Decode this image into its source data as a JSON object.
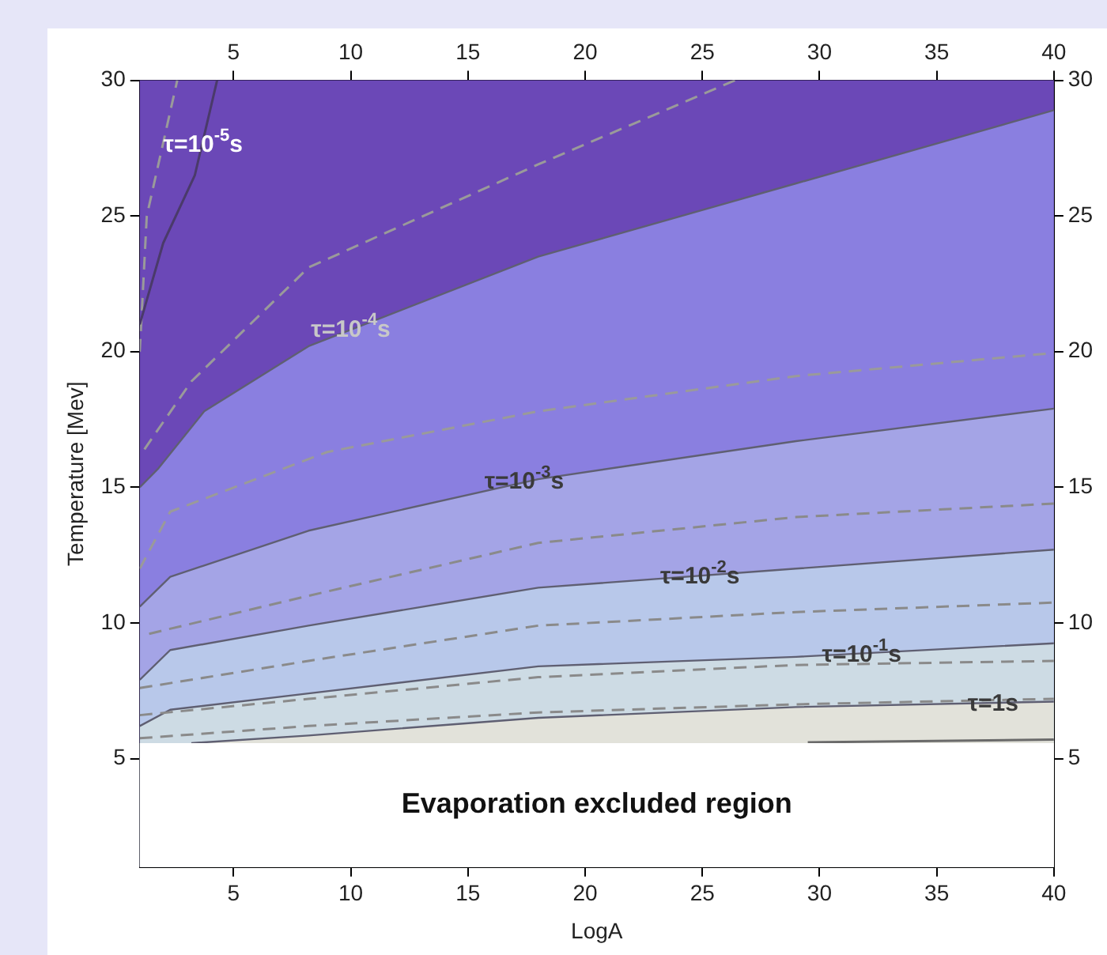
{
  "chart_data": {
    "type": "area",
    "xlabel": "LogA",
    "ylabel": "Temperature [Mev]",
    "xlim": [
      1,
      40
    ],
    "xticks": [
      5,
      10,
      15,
      20,
      25,
      30,
      35,
      40
    ],
    "x2lim": [
      1,
      40
    ],
    "x2ticks": [
      5,
      10,
      15,
      20,
      25,
      30,
      35,
      40
    ],
    "ylim": [
      1,
      30
    ],
    "yticks": [
      5,
      10,
      15,
      20,
      25,
      30
    ],
    "y2lim": [
      1,
      30
    ],
    "y2ticks": [
      5,
      10,
      15,
      20,
      25,
      30
    ],
    "grid": false,
    "legend": false,
    "marker": "none",
    "series": [
      {
        "color": "#8a7fe0",
        "x": [
          1,
          1.8,
          3.75,
          8.2,
          18,
          29,
          40
        ],
        "values": [
          15.0,
          15.7,
          17.8,
          20.2,
          23.5,
          26.2,
          28.9
        ]
      },
      {
        "color": "#a4a4e6",
        "x": [
          1,
          2.3,
          8.2,
          18,
          29,
          40
        ],
        "values": [
          10.6,
          11.7,
          13.4,
          15.3,
          16.7,
          17.9
        ]
      },
      {
        "color": "#b8c8ea",
        "x": [
          1,
          2.3,
          8.2,
          18,
          29,
          40
        ],
        "values": [
          7.9,
          9.0,
          9.9,
          11.3,
          12.0,
          12.7
        ]
      },
      {
        "color": "#cddbe4",
        "x": [
          1,
          2.3,
          8.2,
          18,
          29,
          40
        ],
        "values": [
          6.2,
          6.8,
          7.4,
          8.4,
          8.75,
          9.25
        ]
      },
      {
        "color": "#e2e2da",
        "x": [
          3.2,
          8.2,
          18,
          29,
          40
        ],
        "values": [
          5.57,
          5.85,
          6.5,
          6.9,
          7.1
        ]
      },
      {
        "type": "line",
        "line_style": "dashed",
        "color": "#9a9a9a",
        "x": [
          1,
          1.3,
          2.6
        ],
        "values": [
          20,
          25,
          30
        ]
      },
      {
        "type": "line",
        "line_style": "dashed",
        "color": "#9a9a9a",
        "x": [
          1.2,
          3.2,
          8.2,
          18,
          26.4
        ],
        "values": [
          16.4,
          18.9,
          23.1,
          26.9,
          30
        ]
      },
      {
        "type": "line",
        "line_style": "dashed",
        "color": "#9a9a9a",
        "x": [
          1,
          2.3,
          9,
          18,
          29,
          40
        ],
        "values": [
          12,
          14.1,
          16.3,
          17.8,
          19.1,
          19.95
        ]
      },
      {
        "type": "line",
        "line_style": "dashed",
        "color": "#8a8a8a",
        "x": [
          1.4,
          8.2,
          18,
          29,
          40
        ],
        "values": [
          9.6,
          11.0,
          12.95,
          13.9,
          14.4
        ]
      },
      {
        "type": "line",
        "line_style": "dashed",
        "color": "#8a8a8a",
        "x": [
          1,
          8.2,
          18,
          29,
          40
        ],
        "values": [
          7.6,
          8.6,
          9.9,
          10.4,
          10.75
        ]
      },
      {
        "type": "line",
        "line_style": "dashed",
        "color": "#8a8a8a",
        "x": [
          1,
          8.2,
          18,
          29,
          40
        ],
        "values": [
          6.6,
          7.2,
          8.0,
          8.45,
          8.6
        ]
      },
      {
        "type": "line",
        "line_style": "dashed",
        "color": "#8a8a8a",
        "x": [
          1,
          8.2,
          18,
          29,
          40
        ],
        "values": [
          5.75,
          6.2,
          6.7,
          7.0,
          7.2
        ]
      },
      {
        "type": "line",
        "line_style": "solid",
        "color": "#4a3a6a",
        "x": [
          1,
          2,
          3.35,
          4.3
        ],
        "values": [
          21,
          24,
          26.5,
          30
        ]
      },
      {
        "type": "line",
        "line_style": "solid",
        "color": "#6a6a6a",
        "x": [
          29.5,
          40
        ],
        "values": [
          5.6,
          5.7
        ]
      }
    ],
    "bands": [
      {
        "axis": "y",
        "from": 5.57,
        "to": 30,
        "color": "#6b48b7"
      },
      {
        "axis": "y",
        "from": 1,
        "to": 5.57,
        "color": "#ffffff",
        "label": "Evaporation excluded region"
      }
    ],
    "annotations": [
      {
        "text": "τ=10$^{-5}$s",
        "x": 3.7,
        "y": 27.6
      },
      {
        "text": "τ=10$^{-4}$s",
        "x": 10,
        "y": 20.8
      },
      {
        "text": "τ=10$^{-3}$s",
        "x": 17.4,
        "y": 15.2
      },
      {
        "text": "τ=10$^{-2}$s",
        "x": 24.9,
        "y": 11.7
      },
      {
        "text": "τ=10$^{-1}$s",
        "x": 31.8,
        "y": 8.8
      },
      {
        "text": "τ=1s",
        "x": 37.4,
        "y": 7.0
      }
    ]
  }
}
